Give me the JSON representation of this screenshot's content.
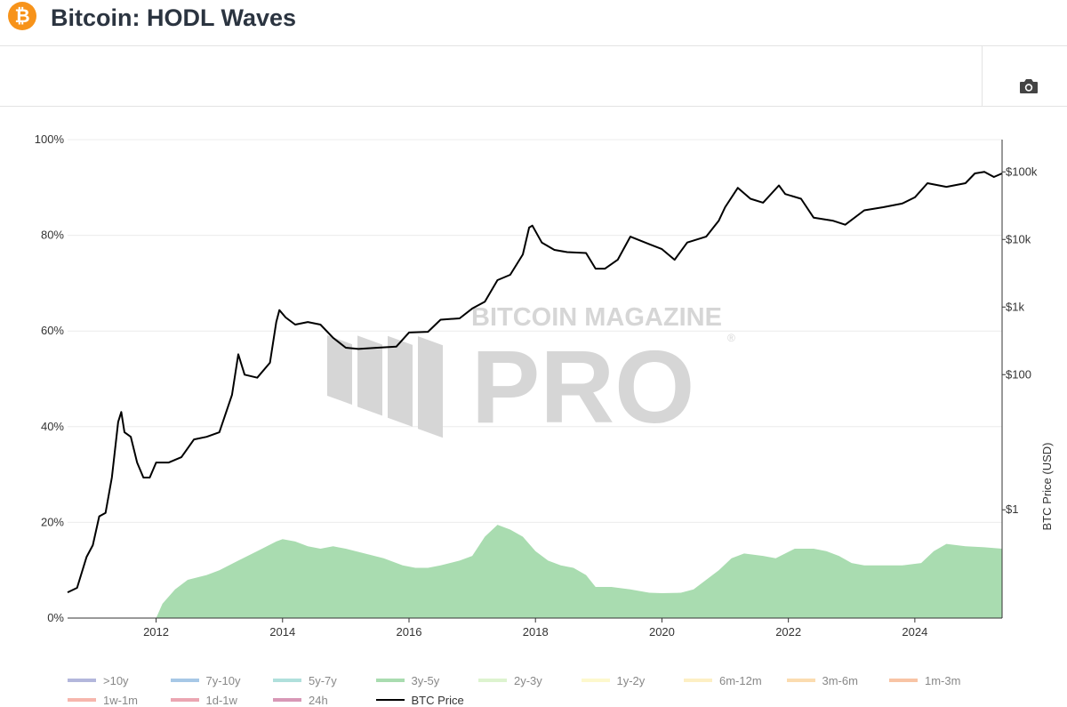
{
  "header": {
    "logo_symbol": "₿",
    "title": "Bitcoin: HODL Waves"
  },
  "toolbar": {
    "camera_icon": "camera-icon"
  },
  "watermark": {
    "line1": "BITCOIN MAGAZINE",
    "line2": "PRO",
    "mark": "®"
  },
  "chart_data": {
    "type": "area",
    "title": "",
    "xlabel": "",
    "ylabel_left": "",
    "ylabel_right": "BTC Price (USD)",
    "grid": true,
    "legend_position": "bottom",
    "x_range": [
      2010.6,
      2025.38
    ],
    "x_ticks": [
      "2012",
      "2014",
      "2016",
      "2018",
      "2020",
      "2022",
      "2024"
    ],
    "y_left_range": [
      0,
      100
    ],
    "y_left_ticks": [
      "0%",
      "20%",
      "40%",
      "60%",
      "80%",
      "100%"
    ],
    "y_right_scale": "log",
    "y_right_range": [
      0.025,
      300000
    ],
    "y_right_ticks": [
      {
        "label": "$1",
        "value": 1
      },
      {
        "label": "$100",
        "value": 100
      },
      {
        "label": "$1k",
        "value": 1000
      },
      {
        "label": "$10k",
        "value": 10000
      },
      {
        "label": "$100k",
        "value": 100000
      }
    ],
    "series": [
      {
        "name": "3y-5y",
        "kind": "area",
        "axis": "left",
        "color": "#a9dcb0",
        "points": [
          [
            2010.6,
            0
          ],
          [
            2012.0,
            0
          ],
          [
            2012.1,
            3
          ],
          [
            2012.3,
            6
          ],
          [
            2012.5,
            8
          ],
          [
            2012.8,
            9
          ],
          [
            2013.0,
            10
          ],
          [
            2013.3,
            12
          ],
          [
            2013.6,
            14
          ],
          [
            2013.9,
            16
          ],
          [
            2014.0,
            16.5
          ],
          [
            2014.2,
            16
          ],
          [
            2014.4,
            15
          ],
          [
            2014.6,
            14.5
          ],
          [
            2014.8,
            15
          ],
          [
            2015.0,
            14.5
          ],
          [
            2015.3,
            13.5
          ],
          [
            2015.6,
            12.5
          ],
          [
            2015.9,
            11
          ],
          [
            2016.1,
            10.5
          ],
          [
            2016.3,
            10.5
          ],
          [
            2016.5,
            11
          ],
          [
            2016.8,
            12
          ],
          [
            2017.0,
            13
          ],
          [
            2017.2,
            17
          ],
          [
            2017.4,
            19.5
          ],
          [
            2017.6,
            18.5
          ],
          [
            2017.8,
            17
          ],
          [
            2018.0,
            14
          ],
          [
            2018.2,
            12
          ],
          [
            2018.4,
            11
          ],
          [
            2018.6,
            10.5
          ],
          [
            2018.8,
            9
          ],
          [
            2018.95,
            6.5
          ],
          [
            2019.2,
            6.5
          ],
          [
            2019.5,
            6
          ],
          [
            2019.8,
            5.3
          ],
          [
            2020.0,
            5.2
          ],
          [
            2020.3,
            5.3
          ],
          [
            2020.5,
            6
          ],
          [
            2020.7,
            8
          ],
          [
            2020.9,
            10
          ],
          [
            2021.1,
            12.5
          ],
          [
            2021.3,
            13.5
          ],
          [
            2021.6,
            13
          ],
          [
            2021.8,
            12.5
          ],
          [
            2021.95,
            13.5
          ],
          [
            2022.1,
            14.5
          ],
          [
            2022.4,
            14.5
          ],
          [
            2022.6,
            14
          ],
          [
            2022.8,
            13
          ],
          [
            2023.0,
            11.5
          ],
          [
            2023.2,
            11
          ],
          [
            2023.5,
            11
          ],
          [
            2023.8,
            11
          ],
          [
            2024.1,
            11.5
          ],
          [
            2024.3,
            14
          ],
          [
            2024.5,
            15.5
          ],
          [
            2024.8,
            15
          ],
          [
            2025.1,
            14.8
          ],
          [
            2025.38,
            14.5
          ]
        ]
      },
      {
        "name": "BTC Price",
        "kind": "line",
        "axis": "right",
        "color": "#000000",
        "points": [
          [
            2010.6,
            0.06
          ],
          [
            2010.75,
            0.07
          ],
          [
            2010.9,
            0.2
          ],
          [
            2011.0,
            0.3
          ],
          [
            2011.1,
            0.8
          ],
          [
            2011.2,
            0.9
          ],
          [
            2011.3,
            3
          ],
          [
            2011.4,
            20
          ],
          [
            2011.45,
            28
          ],
          [
            2011.5,
            14
          ],
          [
            2011.6,
            12
          ],
          [
            2011.7,
            5
          ],
          [
            2011.8,
            3
          ],
          [
            2011.9,
            3
          ],
          [
            2012.0,
            5
          ],
          [
            2012.2,
            5
          ],
          [
            2012.4,
            6
          ],
          [
            2012.6,
            11
          ],
          [
            2012.8,
            12
          ],
          [
            2013.0,
            14
          ],
          [
            2013.2,
            50
          ],
          [
            2013.3,
            200
          ],
          [
            2013.4,
            100
          ],
          [
            2013.6,
            90
          ],
          [
            2013.8,
            150
          ],
          [
            2013.9,
            600
          ],
          [
            2013.95,
            900
          ],
          [
            2014.05,
            700
          ],
          [
            2014.2,
            550
          ],
          [
            2014.4,
            600
          ],
          [
            2014.6,
            550
          ],
          [
            2014.8,
            350
          ],
          [
            2015.0,
            250
          ],
          [
            2015.2,
            240
          ],
          [
            2015.5,
            250
          ],
          [
            2015.8,
            260
          ],
          [
            2016.0,
            420
          ],
          [
            2016.3,
            430
          ],
          [
            2016.5,
            650
          ],
          [
            2016.8,
            680
          ],
          [
            2017.0,
            950
          ],
          [
            2017.2,
            1200
          ],
          [
            2017.4,
            2500
          ],
          [
            2017.6,
            3000
          ],
          [
            2017.8,
            6000
          ],
          [
            2017.9,
            15000
          ],
          [
            2017.95,
            16000
          ],
          [
            2018.1,
            9000
          ],
          [
            2018.3,
            7000
          ],
          [
            2018.5,
            6500
          ],
          [
            2018.8,
            6300
          ],
          [
            2018.95,
            3700
          ],
          [
            2019.1,
            3700
          ],
          [
            2019.3,
            5000
          ],
          [
            2019.5,
            11000
          ],
          [
            2019.8,
            8500
          ],
          [
            2020.0,
            7200
          ],
          [
            2020.2,
            5000
          ],
          [
            2020.4,
            9000
          ],
          [
            2020.7,
            11000
          ],
          [
            2020.9,
            19000
          ],
          [
            2021.0,
            30000
          ],
          [
            2021.2,
            58000
          ],
          [
            2021.4,
            40000
          ],
          [
            2021.6,
            35000
          ],
          [
            2021.85,
            63000
          ],
          [
            2021.95,
            47000
          ],
          [
            2022.2,
            40000
          ],
          [
            2022.4,
            21000
          ],
          [
            2022.7,
            19000
          ],
          [
            2022.9,
            16500
          ],
          [
            2023.2,
            27000
          ],
          [
            2023.5,
            30000
          ],
          [
            2023.8,
            34000
          ],
          [
            2024.0,
            42000
          ],
          [
            2024.2,
            68000
          ],
          [
            2024.5,
            60000
          ],
          [
            2024.8,
            68000
          ],
          [
            2024.95,
            95000
          ],
          [
            2025.1,
            100000
          ],
          [
            2025.25,
            84000
          ],
          [
            2025.38,
            95000
          ]
        ]
      }
    ],
    "legend": [
      {
        "name": ">10y",
        "color": "#b3b7dc"
      },
      {
        "name": "7y-10y",
        "color": "#a7c8e6"
      },
      {
        "name": "5y-7y",
        "color": "#b0e0dc"
      },
      {
        "name": "3y-5y",
        "color": "#a9dcb0"
      },
      {
        "name": "2y-3y",
        "color": "#ddf3cf"
      },
      {
        "name": "1y-2y",
        "color": "#fdf8cd"
      },
      {
        "name": "6m-12m",
        "color": "#fdefc4"
      },
      {
        "name": "3m-6m",
        "color": "#fbdcb0"
      },
      {
        "name": "1m-3m",
        "color": "#f8c4a5"
      },
      {
        "name": "1w-1m",
        "color": "#f6b6ad"
      },
      {
        "name": "1d-1w",
        "color": "#eba6b2"
      },
      {
        "name": "24h",
        "color": "#d898b6"
      },
      {
        "name": "BTC Price",
        "color": "#000000"
      }
    ]
  }
}
